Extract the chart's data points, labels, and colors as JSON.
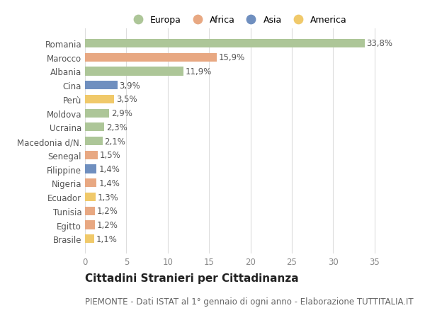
{
  "countries": [
    "Romania",
    "Marocco",
    "Albania",
    "Cina",
    "Perù",
    "Moldova",
    "Ucraina",
    "Macedonia d/N.",
    "Senegal",
    "Filippine",
    "Nigeria",
    "Ecuador",
    "Tunisia",
    "Egitto",
    "Brasile"
  ],
  "values": [
    33.8,
    15.9,
    11.9,
    3.9,
    3.5,
    2.9,
    2.3,
    2.1,
    1.5,
    1.4,
    1.4,
    1.3,
    1.2,
    1.2,
    1.1
  ],
  "labels": [
    "33,8%",
    "15,9%",
    "11,9%",
    "3,9%",
    "3,5%",
    "2,9%",
    "2,3%",
    "2,1%",
    "1,5%",
    "1,4%",
    "1,4%",
    "1,3%",
    "1,2%",
    "1,2%",
    "1,1%"
  ],
  "continents": [
    "Europa",
    "Africa",
    "Europa",
    "Asia",
    "America",
    "Europa",
    "Europa",
    "Europa",
    "Africa",
    "Asia",
    "Africa",
    "America",
    "Africa",
    "Africa",
    "America"
  ],
  "colors": {
    "Europa": "#adc698",
    "Africa": "#e8a882",
    "Asia": "#6f8fbf",
    "America": "#f0c96a"
  },
  "legend_order": [
    "Europa",
    "Africa",
    "Asia",
    "America"
  ],
  "title": "Cittadini Stranieri per Cittadinanza",
  "subtitle": "PIEMONTE - Dati ISTAT al 1° gennaio di ogni anno - Elaborazione TUTTITALIA.IT",
  "xlim": [
    0,
    37
  ],
  "xticks": [
    0,
    5,
    10,
    15,
    20,
    25,
    30,
    35
  ],
  "bg_color": "#ffffff",
  "plot_bg_color": "#ffffff",
  "grid_color": "#dddddd",
  "bar_height": 0.62,
  "label_fontsize": 8.5,
  "tick_label_fontsize": 8.5,
  "title_fontsize": 11,
  "subtitle_fontsize": 8.5
}
